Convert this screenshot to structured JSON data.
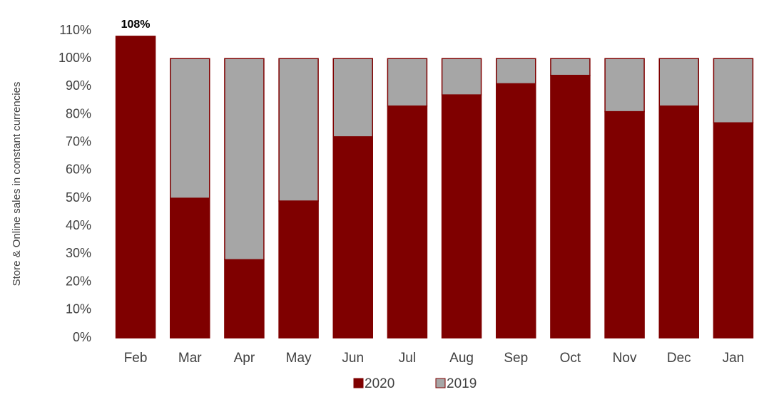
{
  "chart_data": {
    "type": "stacked_bar",
    "y_label": "Store & Online sales in constant currencies",
    "categories": [
      "Feb",
      "Mar",
      "Apr",
      "May",
      "Jun",
      "Jul",
      "Aug",
      "Sep",
      "Oct",
      "Nov",
      "Dec",
      "Jan"
    ],
    "series": [
      {
        "name": "2020",
        "color": "#7f0000",
        "values": [
          108,
          50,
          28,
          49,
          72,
          83,
          87,
          91,
          94,
          81,
          83,
          77
        ],
        "value_labels": [
          "108%",
          "50%",
          "28%",
          "49%",
          "72%",
          "83%",
          "87%",
          "91%",
          "94%",
          "81%",
          "83%",
          "77%"
        ]
      },
      {
        "name": "2019",
        "color": "#a6a6a6",
        "values": [
          0,
          50,
          72,
          51,
          28,
          17,
          13,
          9,
          6,
          19,
          17,
          23
        ]
      }
    ],
    "ylim": [
      0,
      110
    ],
    "yticks": [
      {
        "value": 0,
        "label": "0%"
      },
      {
        "value": 10,
        "label": "10%"
      },
      {
        "value": 20,
        "label": "20%"
      },
      {
        "value": 30,
        "label": "30%"
      },
      {
        "value": 40,
        "label": "40%"
      },
      {
        "value": 50,
        "label": "50%"
      },
      {
        "value": 60,
        "label": "60%"
      },
      {
        "value": 70,
        "label": "70%"
      },
      {
        "value": 80,
        "label": "80%"
      },
      {
        "value": 90,
        "label": "90%"
      },
      {
        "value": 100,
        "label": "100%"
      },
      {
        "value": 110,
        "label": "110%"
      }
    ],
    "legend": "bottom"
  }
}
